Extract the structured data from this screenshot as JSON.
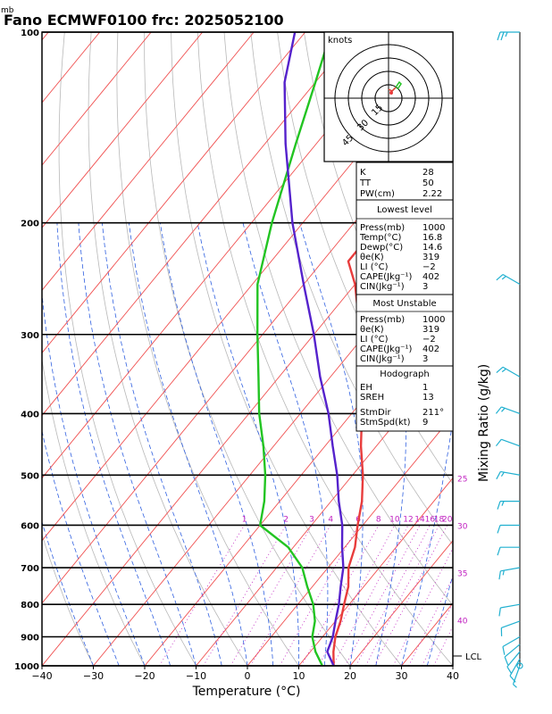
{
  "header": {
    "unit_mb": "mb",
    "title": "Fano ECMWF0100  frc: 2025052100"
  },
  "axes": {
    "xlabel": "Temperature (°C)",
    "side_label": "Mixing Ratio (g/kg)",
    "lcl_label": "LCL"
  },
  "hodograph": {
    "units": "knots",
    "ring_labels": [
      "15",
      "30",
      "45"
    ]
  },
  "indices": {
    "rows": [
      {
        "label": "K",
        "value": "28"
      },
      {
        "label": "TT",
        "value": "50"
      },
      {
        "label": "PW(cm)",
        "value": "2.22"
      }
    ]
  },
  "lowest_level": {
    "title": "Lowest level",
    "rows": [
      {
        "label": "Press(mb)",
        "value": "1000"
      },
      {
        "label": "Temp(°C)",
        "value": "16.8"
      },
      {
        "label": "Dewp(°C)",
        "value": "14.6"
      },
      {
        "label": "θe(K)",
        "value": "319"
      },
      {
        "label": "LI (°C)",
        "value": "−2"
      },
      {
        "label": "CAPE(Jkg⁻¹)",
        "value": "402"
      },
      {
        "label": "CIN(Jkg⁻¹)",
        "value": "3"
      }
    ]
  },
  "most_unstable": {
    "title": "Most Unstable",
    "rows": [
      {
        "label": "Press(mb)",
        "value": "1000"
      },
      {
        "label": "θe(K)",
        "value": "319"
      },
      {
        "label": "LI (°C)",
        "value": "−2"
      },
      {
        "label": "CAPE(Jkg⁻¹)",
        "value": "402"
      },
      {
        "label": "CIN(Jkg⁻¹)",
        "value": "3"
      }
    ]
  },
  "hodograph_box": {
    "title": "Hodograph",
    "rows": [
      {
        "label": "EH",
        "value": "1"
      },
      {
        "label": "SREH",
        "value": "13"
      },
      {
        "label": "StmDir",
        "value": "211°"
      },
      {
        "label": "StmSpd(kt)",
        "value": "9"
      }
    ]
  },
  "chart_data": {
    "type": "line",
    "title": "Fano ECMWF0100  frc: 2025052100",
    "xlabel": "Temperature (°C)",
    "ylabel": "mb",
    "x_range": [
      -40,
      40
    ],
    "x_ticks": [
      -40,
      -30,
      -20,
      -10,
      0,
      10,
      20,
      30,
      40
    ],
    "p_range": [
      1000,
      100
    ],
    "p_ticks": [
      1000,
      900,
      800,
      700,
      600,
      500,
      400,
      300,
      200,
      100
    ],
    "mixing_ratio_labels": [
      "1",
      "2",
      "3",
      "4",
      "6",
      "8",
      "10",
      "12",
      "14",
      "16",
      "18",
      "20",
      "25",
      "30",
      "35",
      "40"
    ],
    "colors": {
      "temperature": "#e83c3c",
      "dewpoint": "#22c422",
      "parcel": "#5522cc",
      "isotherm": "#f05050",
      "dry_adiabat": "#b8b8b8",
      "moist_adiabat": "#3060e0",
      "mixing_ratio": "#c020c0",
      "wind": "#20b0d0"
    },
    "series": [
      {
        "name": "Temperature",
        "points": [
          [
            1000,
            16.8
          ],
          [
            950,
            14.5
          ],
          [
            900,
            12.5
          ],
          [
            850,
            11
          ],
          [
            800,
            9
          ],
          [
            750,
            7
          ],
          [
            700,
            4
          ],
          [
            650,
            2
          ],
          [
            600,
            -1
          ],
          [
            550,
            -4
          ],
          [
            500,
            -8
          ],
          [
            450,
            -13
          ],
          [
            400,
            -18
          ],
          [
            350,
            -24
          ],
          [
            300,
            -31
          ],
          [
            250,
            -40
          ],
          [
            230,
            -45
          ],
          [
            200,
            -45
          ],
          [
            170,
            -42
          ],
          [
            150,
            -36
          ],
          [
            120,
            -27
          ],
          [
            100,
            -22
          ]
        ]
      },
      {
        "name": "Dew point",
        "points": [
          [
            1000,
            14.6
          ],
          [
            950,
            11
          ],
          [
            900,
            8
          ],
          [
            850,
            6
          ],
          [
            800,
            3
          ],
          [
            750,
            -1
          ],
          [
            700,
            -5
          ],
          [
            650,
            -11
          ],
          [
            600,
            -20
          ],
          [
            550,
            -23
          ],
          [
            500,
            -27
          ],
          [
            450,
            -32
          ],
          [
            400,
            -38
          ],
          [
            350,
            -44
          ],
          [
            300,
            -51
          ],
          [
            250,
            -59
          ],
          [
            200,
            -66
          ],
          [
            150,
            -74
          ],
          [
            120,
            -80
          ],
          [
            100,
            -85
          ]
        ]
      },
      {
        "name": "Parcel",
        "points": [
          [
            1000,
            16.8
          ],
          [
            960,
            14
          ],
          [
            950,
            13.3
          ],
          [
            900,
            12
          ],
          [
            850,
            10
          ],
          [
            800,
            8
          ],
          [
            750,
            5.5
          ],
          [
            700,
            3
          ],
          [
            650,
            -0.5
          ],
          [
            600,
            -4
          ],
          [
            550,
            -8.5
          ],
          [
            500,
            -13
          ],
          [
            450,
            -18.5
          ],
          [
            400,
            -24.5
          ],
          [
            350,
            -32
          ],
          [
            300,
            -40
          ],
          [
            250,
            -50
          ],
          [
            200,
            -62
          ],
          [
            150,
            -76
          ],
          [
            120,
            -86
          ],
          [
            100,
            -92
          ]
        ]
      }
    ],
    "winds": [
      {
        "p": 1000,
        "dir": 200,
        "spd": 5
      },
      {
        "p": 975,
        "dir": 210,
        "spd": 10
      },
      {
        "p": 950,
        "dir": 220,
        "spd": 10
      },
      {
        "p": 925,
        "dir": 230,
        "spd": 10
      },
      {
        "p": 900,
        "dir": 240,
        "spd": 10
      },
      {
        "p": 850,
        "dir": 250,
        "spd": 10
      },
      {
        "p": 800,
        "dir": 260,
        "spd": 10
      },
      {
        "p": 700,
        "dir": 260,
        "spd": 15
      },
      {
        "p": 650,
        "dir": 270,
        "spd": 10
      },
      {
        "p": 600,
        "dir": 270,
        "spd": 10
      },
      {
        "p": 550,
        "dir": 270,
        "spd": 15
      },
      {
        "p": 500,
        "dir": 280,
        "spd": 15
      },
      {
        "p": 450,
        "dir": 290,
        "spd": 10
      },
      {
        "p": 400,
        "dir": 290,
        "spd": 15
      },
      {
        "p": 350,
        "dir": 300,
        "spd": 15
      },
      {
        "p": 250,
        "dir": 300,
        "spd": 15
      },
      {
        "p": 100,
        "dir": 270,
        "spd": 25
      }
    ],
    "hodograph_points": [
      {
        "u": 0,
        "v": 5
      },
      {
        "u": 2,
        "v": 4
      },
      {
        "u": 4,
        "v": 6
      },
      {
        "u": 6,
        "v": 9
      },
      {
        "u": 7,
        "v": 8
      },
      {
        "u": 5,
        "v": 5
      }
    ],
    "hodograph_max_speed": 60,
    "lcl_pressure": 975
  }
}
